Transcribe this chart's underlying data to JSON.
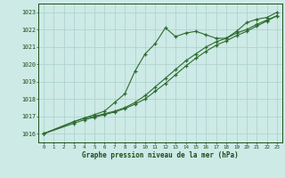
{
  "hours": [
    0,
    1,
    2,
    3,
    4,
    5,
    6,
    7,
    8,
    9,
    10,
    11,
    12,
    13,
    14,
    15,
    16,
    17,
    18,
    19,
    20,
    21,
    22,
    23
  ],
  "series1": [
    1016.0,
    null,
    null,
    1016.7,
    1016.9,
    1017.1,
    1017.3,
    1017.8,
    1018.3,
    1019.6,
    1020.6,
    1021.2,
    1022.1,
    1021.6,
    1021.8,
    1021.9,
    1021.7,
    1021.5,
    1021.5,
    1021.9,
    1022.4,
    1022.6,
    1022.7,
    1023.0
  ],
  "series2": [
    1016.0,
    null,
    null,
    1016.7,
    1016.9,
    1017.0,
    1017.15,
    1017.3,
    1017.5,
    1017.8,
    1018.2,
    1018.7,
    1019.2,
    1019.7,
    1020.2,
    1020.6,
    1021.0,
    1021.3,
    1021.5,
    1021.8,
    1022.0,
    1022.3,
    1022.55,
    1022.8
  ],
  "series3": [
    1016.0,
    null,
    null,
    1016.6,
    1016.8,
    1016.95,
    1017.1,
    1017.25,
    1017.45,
    1017.7,
    1018.0,
    1018.45,
    1018.9,
    1019.4,
    1019.9,
    1020.35,
    1020.75,
    1021.1,
    1021.35,
    1021.65,
    1021.9,
    1022.2,
    1022.5,
    1022.8
  ],
  "line_color": "#2d6a2d",
  "bg_color": "#cdeae6",
  "grid_color": "#aed4cf",
  "text_color": "#1a4d1a",
  "ylim_min": 1015.5,
  "ylim_max": 1023.5,
  "ylabel_ticks": [
    1016,
    1017,
    1018,
    1019,
    1020,
    1021,
    1022,
    1023
  ],
  "xlabel": "Graphe pression niveau de la mer (hPa)"
}
